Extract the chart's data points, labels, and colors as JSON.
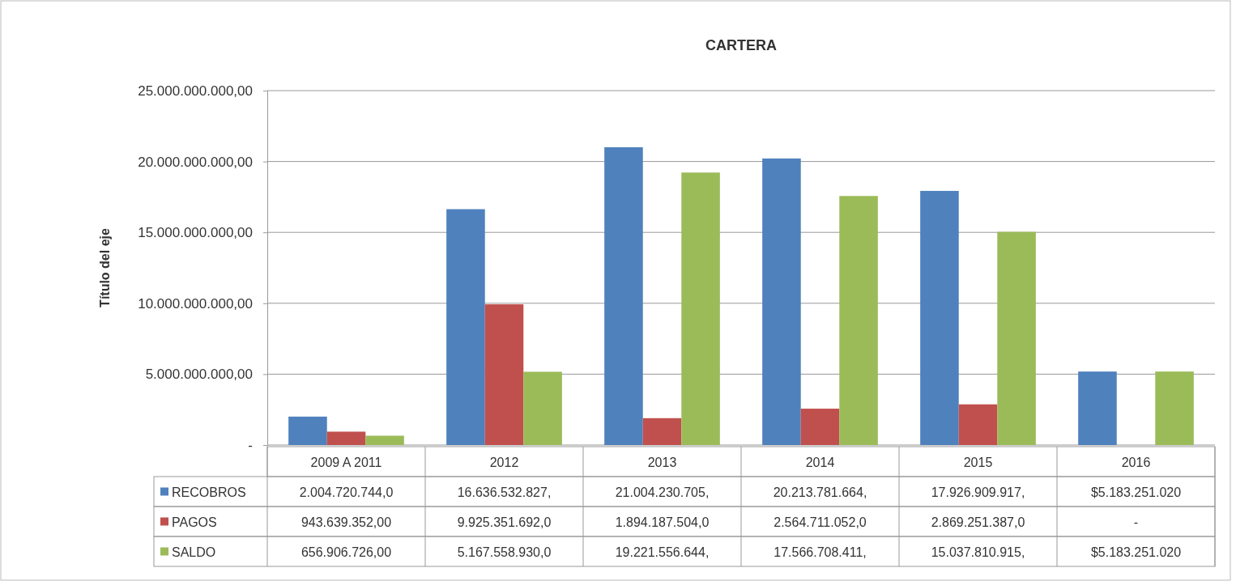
{
  "chart_data": {
    "type": "bar",
    "title": "CARTERA",
    "ylabel": "Título del eje",
    "categories": [
      "2009 A 2011",
      "2012",
      "2013",
      "2014",
      "2015",
      "2016"
    ],
    "series": [
      {
        "name": "RECOBROS",
        "color": "#4f81bd",
        "values": [
          2004720744,
          16636532827,
          21004230705,
          20213781664,
          17926909917,
          5183251020
        ],
        "value_labels": [
          "2.004.720.744,0",
          "16.636.532.827,",
          "21.004.230.705,",
          "20.213.781.664,",
          "17.926.909.917,",
          "$5.183.251.020"
        ]
      },
      {
        "name": "PAGOS",
        "color": "#c0504d",
        "values": [
          943639352,
          9925351692,
          1894187504,
          2564711052,
          2869251387,
          0
        ],
        "value_labels": [
          "943.639.352,00",
          "9.925.351.692,0",
          "1.894.187.504,0",
          "2.564.711.052,0",
          "2.869.251.387,0",
          "-"
        ]
      },
      {
        "name": "SALDO",
        "color": "#9bbb59",
        "values": [
          656906726,
          5167558930,
          19221556644,
          17566708411,
          15037810915,
          5183251020
        ],
        "value_labels": [
          "656.906.726,00",
          "5.167.558.930,0",
          "19.221.556.644,",
          "17.566.708.411,",
          "15.037.810.915,",
          "$5.183.251.020"
        ]
      }
    ],
    "ylim": [
      0,
      25000000000
    ],
    "yticks": [
      {
        "value": 0,
        "label": "-"
      },
      {
        "value": 5000000000,
        "label": "5.000.000.000,00"
      },
      {
        "value": 10000000000,
        "label": "10.000.000.000,00"
      },
      {
        "value": 15000000000,
        "label": "15.000.000.000,00"
      },
      {
        "value": 20000000000,
        "label": "20.000.000.000,00"
      },
      {
        "value": 25000000000,
        "label": "25.000.000.000,00"
      }
    ],
    "grid": "y",
    "legend": "bottom"
  }
}
